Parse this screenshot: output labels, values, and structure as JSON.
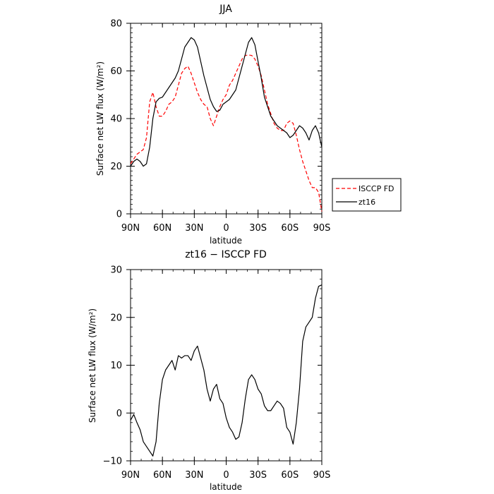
{
  "chart_data": [
    {
      "type": "line",
      "title": "JJA",
      "xlabel": "latitude",
      "ylabel": "Surface net LW flux (W/m²)",
      "xlim": [
        90,
        -90
      ],
      "ylim": [
        0,
        80
      ],
      "x_ticks": [
        90,
        60,
        30,
        0,
        -30,
        -60,
        -90
      ],
      "x_tick_labels": [
        "90N",
        "60N",
        "30N",
        "0",
        "30S",
        "60S",
        "90S"
      ],
      "y_ticks": [
        0,
        20,
        40,
        60,
        80
      ],
      "y_tick_labels": [
        "0",
        "20",
        "40",
        "60",
        "80"
      ],
      "legend_position": "right",
      "series": [
        {
          "name": "ISCCP FD",
          "color": "#ff0000",
          "dash": "dashed",
          "x": [
            90,
            87,
            84,
            81,
            78,
            75,
            72,
            69,
            66,
            63,
            60,
            57,
            54,
            51,
            48,
            45,
            42,
            39,
            36,
            33,
            30,
            27,
            24,
            21,
            18,
            15,
            12,
            9,
            6,
            3,
            0,
            -3,
            -6,
            -9,
            -12,
            -15,
            -18,
            -21,
            -24,
            -27,
            -30,
            -33,
            -36,
            -39,
            -42,
            -45,
            -48,
            -51,
            -54,
            -57,
            -60,
            -63,
            -66,
            -69,
            -72,
            -75,
            -78,
            -81,
            -84,
            -87,
            -90
          ],
          "values": [
            21,
            23,
            25,
            26,
            27,
            32,
            47,
            51,
            45,
            41,
            41,
            43,
            46,
            47,
            49,
            54,
            59,
            61,
            62,
            59,
            55,
            51,
            48,
            46,
            45,
            40,
            37,
            41,
            45,
            48,
            50,
            54,
            56,
            59,
            62,
            65,
            66.5,
            66.7,
            66.5,
            65,
            62,
            58,
            52,
            46,
            42,
            38,
            36,
            35,
            35,
            38,
            39,
            38,
            33,
            27,
            22,
            18,
            14,
            11,
            11,
            9,
            1
          ]
        },
        {
          "name": "zt16",
          "color": "#000000",
          "dash": "solid",
          "x": [
            90,
            87,
            84,
            81,
            78,
            75,
            72,
            69,
            66,
            63,
            60,
            57,
            54,
            51,
            48,
            45,
            42,
            39,
            36,
            33,
            30,
            27,
            24,
            21,
            18,
            15,
            12,
            9,
            6,
            3,
            0,
            -3,
            -6,
            -9,
            -12,
            -15,
            -18,
            -21,
            -24,
            -27,
            -30,
            -33,
            -36,
            -39,
            -42,
            -45,
            -48,
            -51,
            -54,
            -57,
            -60,
            -63,
            -66,
            -69,
            -72,
            -75,
            -78,
            -81,
            -84,
            -87,
            -90
          ],
          "values": [
            20,
            22,
            23,
            22,
            20,
            21,
            28,
            40,
            47,
            48.5,
            49,
            51,
            53,
            55,
            57,
            60,
            65,
            70,
            72,
            74,
            73,
            70,
            64,
            58,
            53,
            48,
            45,
            43,
            43.5,
            46,
            47,
            48,
            50,
            52,
            57,
            62,
            67,
            72,
            74,
            71,
            64,
            57,
            49,
            45,
            41,
            39,
            37,
            36,
            35,
            34,
            32,
            33,
            35,
            37,
            36,
            34,
            31,
            35,
            37,
            34,
            28
          ]
        }
      ]
    },
    {
      "type": "line",
      "title": "zt16 − ISCCP FD",
      "xlabel": "latitude",
      "ylabel": "Surface net LW flux (W/m²)",
      "xlim": [
        90,
        -90
      ],
      "ylim": [
        -10,
        30
      ],
      "x_ticks": [
        90,
        60,
        30,
        0,
        -30,
        -60,
        -90
      ],
      "x_tick_labels": [
        "90N",
        "60N",
        "30N",
        "0",
        "30S",
        "60S",
        "90S"
      ],
      "y_ticks": [
        -10,
        0,
        10,
        20,
        30
      ],
      "y_tick_labels": [
        "−10",
        "0",
        "10",
        "20",
        "30"
      ],
      "series": [
        {
          "name": "",
          "color": "#000000",
          "dash": "solid",
          "x": [
            90,
            87,
            84,
            81,
            78,
            75,
            72,
            69,
            66,
            63,
            60,
            57,
            54,
            51,
            48,
            45,
            42,
            39,
            36,
            33,
            30,
            27,
            24,
            21,
            18,
            15,
            12,
            9,
            6,
            3,
            0,
            -3,
            -6,
            -9,
            -12,
            -15,
            -18,
            -21,
            -24,
            -27,
            -30,
            -33,
            -36,
            -39,
            -42,
            -45,
            -48,
            -51,
            -54,
            -57,
            -60,
            -63,
            -66,
            -69,
            -72,
            -75,
            -78,
            -81,
            -84,
            -87,
            -90
          ],
          "values": [
            -1.5,
            -0.3,
            -2,
            -3.5,
            -6,
            -7,
            -8,
            -9,
            -6,
            2,
            7,
            9,
            10,
            11,
            9,
            12,
            11.5,
            12,
            12,
            11,
            13,
            14,
            11.5,
            9,
            5,
            2.5,
            5,
            6,
            3,
            2,
            -1,
            -3,
            -4,
            -5.5,
            -5,
            -2,
            3,
            7,
            8,
            7,
            5,
            4,
            1.5,
            0.5,
            0.5,
            1.5,
            2.5,
            2,
            1,
            -3,
            -4,
            -6.5,
            -2,
            5,
            15,
            18,
            19,
            20,
            24,
            26.5,
            26.8
          ]
        }
      ]
    }
  ]
}
